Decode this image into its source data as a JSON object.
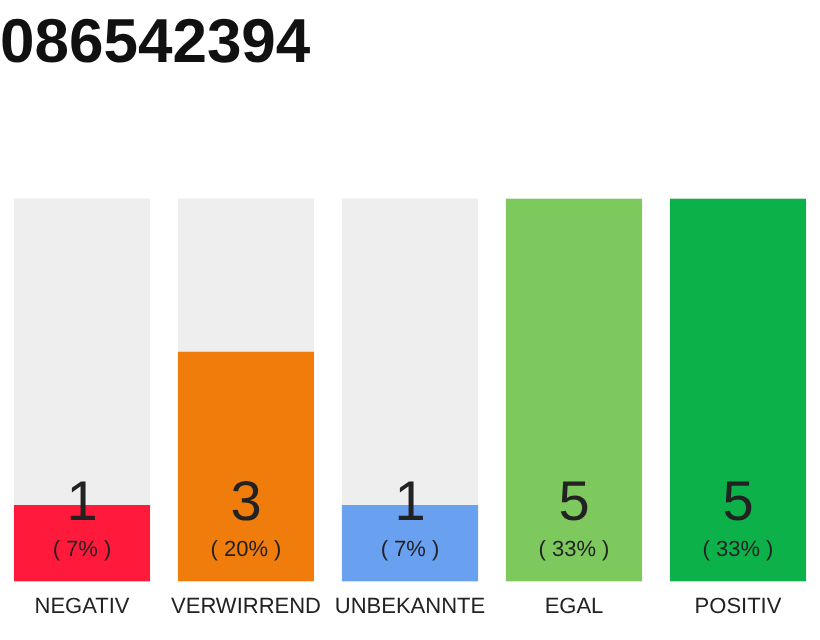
{
  "chart_data": {
    "type": "bar",
    "title": "086542394",
    "categories": [
      "NEGATIV",
      "VERWIRREND",
      "UNBEKANNTE",
      "EGAL",
      "POSITIV"
    ],
    "values": [
      1,
      3,
      1,
      5,
      5
    ],
    "colors": [
      "#ff1a3c",
      "#f07c0c",
      "#6aa0f0",
      "#7dc95e",
      "#0db14a"
    ],
    "ylim": [
      0,
      5
    ],
    "tick_labels": "x",
    "grid": false,
    "legend": false,
    "data_labels": true,
    "annotations": [
      "( 7% )",
      "( 20% )",
      "( 7% )",
      "( 33% )",
      "( 33% )"
    ]
  }
}
